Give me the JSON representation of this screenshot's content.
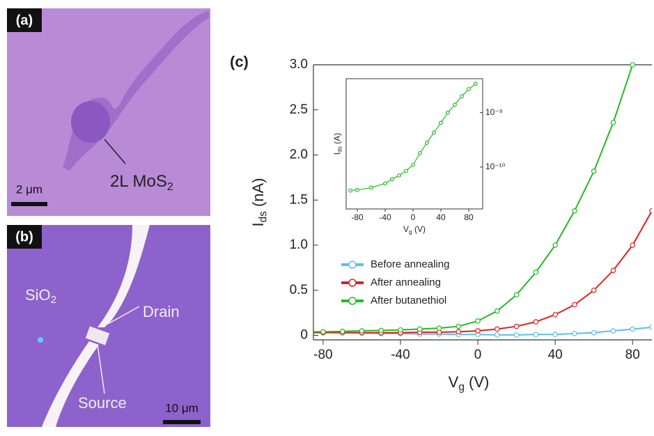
{
  "panels": [
    {
      "label": "(a)",
      "scale_bar": "2 μm",
      "annotation": "2L MoS",
      "annotation_sub": "2"
    },
    {
      "label": "(b)",
      "scale_bar": "10 μm",
      "material": "SiO",
      "material_sub": "2",
      "drain": "Drain",
      "source": "Source"
    }
  ],
  "chart_data": [
    {
      "type": "line",
      "panel_label": "(c)",
      "x_label": "V",
      "x_label_sub": "g",
      "x_label_unit": " (V)",
      "y_label": "I",
      "y_label_sub": "ds",
      "y_label_unit": " (nA)",
      "x": [
        -90,
        -80,
        -70,
        -60,
        -50,
        -40,
        -30,
        -20,
        -10,
        0,
        10,
        20,
        30,
        40,
        50,
        60,
        70,
        80,
        90
      ],
      "series": [
        {
          "name": "Before annealing",
          "color": "#5bbfea",
          "values": [
            0.03,
            0.03,
            0.03,
            0.025,
            0.02,
            0.02,
            0.015,
            0.015,
            0.01,
            0.01,
            0.005,
            0.005,
            0.01,
            0.01,
            0.02,
            0.03,
            0.05,
            0.07,
            0.09
          ]
        },
        {
          "name": "After annealing",
          "color": "#e02020",
          "values": [
            0.03,
            0.03,
            0.03,
            0.03,
            0.03,
            0.03,
            0.035,
            0.035,
            0.04,
            0.05,
            0.07,
            0.1,
            0.15,
            0.23,
            0.34,
            0.5,
            0.72,
            1.0,
            1.38
          ]
        },
        {
          "name": "After butanethiol",
          "color": "#22bb22",
          "values": [
            0.04,
            0.04,
            0.045,
            0.05,
            0.055,
            0.06,
            0.07,
            0.08,
            0.1,
            0.16,
            0.27,
            0.45,
            0.7,
            1.0,
            1.38,
            1.82,
            2.36,
            3.0,
            null
          ]
        }
      ],
      "xlim": [
        -85,
        90
      ],
      "xticks": [
        -80,
        -40,
        0,
        40,
        80
      ],
      "ylim": [
        -0.05,
        3.0
      ],
      "yticks": [
        0,
        0.5,
        {
          "value": 1,
          "label": "1.0"
        },
        1.5,
        {
          "value": 2,
          "label": "2.0"
        },
        2.5,
        {
          "value": 3,
          "label": "3.0"
        }
      ],
      "legend": "lower-left",
      "markers": "open-circle"
    },
    {
      "type": "line",
      "log_y": true,
      "y_axis_side": "right",
      "x_label": "V",
      "x_label_sub": "g",
      "x_label_unit": " (V)",
      "y_label": "I",
      "y_label_sub": "ds",
      "y_label_unit": " (A)",
      "x": [
        -90,
        -80,
        -60,
        -40,
        -30,
        -20,
        -10,
        0,
        10,
        20,
        30,
        40,
        50,
        60,
        70,
        80,
        90
      ],
      "series": [
        {
          "color": "#22bb22",
          "values": [
            3.7e-11,
            3.8e-11,
            4.2e-11,
            5e-11,
            6e-11,
            7e-11,
            8.5e-11,
            1.1e-10,
            1.8e-10,
            2.8e-10,
            4.3e-10,
            6.5e-10,
            1e-09,
            1.4e-09,
            2e-09,
            2.7e-09,
            3.4e-09
          ]
        }
      ],
      "xlim": [
        -96,
        100
      ],
      "xticks": [
        -80,
        -40,
        0,
        40,
        80
      ],
      "ylim": [
        1.7e-11,
        4.2e-09
      ],
      "yticks": [
        {
          "value": 1e-10,
          "label": "10⁻¹⁰"
        },
        {
          "value": 1e-09,
          "label": "10⁻⁹"
        }
      ],
      "markers": "open-circle"
    }
  ]
}
